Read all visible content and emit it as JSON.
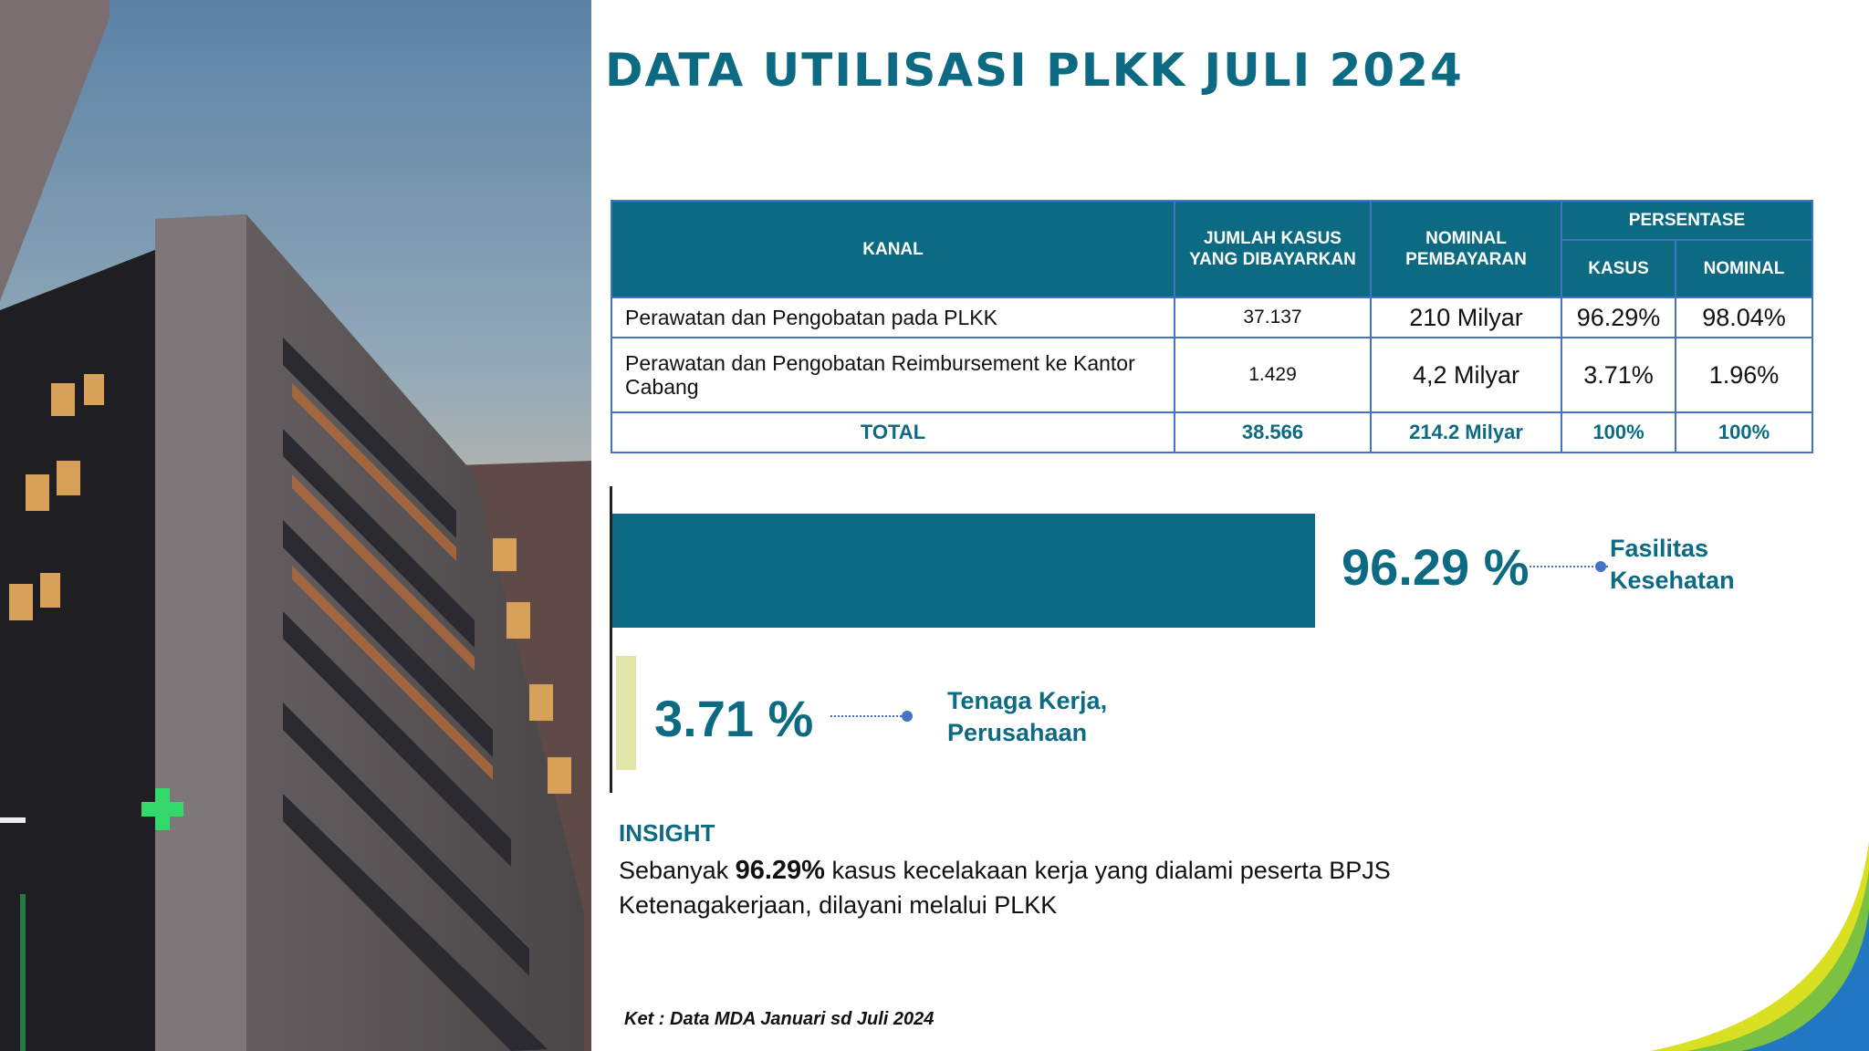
{
  "title": "DATA UTILISASI PLKK JULI 2024",
  "table": {
    "headers": {
      "kanal": "KANAL",
      "jumlah_kasus": "JUMLAH KASUS YANG DIBAYARKAN",
      "nominal": "NOMINAL PEMBAYARAN",
      "persentase": "PERSENTASE",
      "kasus": "KASUS",
      "nominal_pct": "NOMINAL"
    },
    "rows": [
      {
        "kanal": "Perawatan dan Pengobatan pada PLKK",
        "jumlah_kasus": "37.137",
        "nominal": "210 Milyar",
        "kasus_pct": "96.29%",
        "nominal_pct": "98.04%"
      },
      {
        "kanal": "Perawatan dan Pengobatan Reimbursement ke Kantor Cabang",
        "jumlah_kasus": "1.429",
        "nominal": "4,2 Milyar",
        "kasus_pct": "3.71%",
        "nominal_pct": "1.96%"
      }
    ],
    "total": {
      "label": "TOTAL",
      "jumlah_kasus": "38.566",
      "nominal": "214.2 Milyar",
      "kasus_pct": "100%",
      "nominal_pct": "100%"
    }
  },
  "chart_data": {
    "type": "bar",
    "orientation": "horizontal",
    "categories": [
      "Fasilitas Kesehatan",
      "Tenaga Kerja, Perusahaan"
    ],
    "values": [
      96.29,
      3.71
    ],
    "value_labels": [
      "96.29 %",
      "3.71 %"
    ],
    "category_label_lines": [
      [
        "Fasilitas",
        "Kesehatan"
      ],
      [
        "Tenaga Kerja,",
        "Perusahaan"
      ]
    ],
    "colors": [
      "#0c6a82",
      "#e1e6a8"
    ],
    "xlim": [
      0,
      100
    ]
  },
  "insight": {
    "heading": "INSIGHT",
    "prefix": "Sebanyak",
    "highlight": "96.29%",
    "line1_rest": "kasus kecelakaan kerja yang dialami peserta BPJS",
    "line2": "Ketenagakerjaan, dilayani melalui PLKK"
  },
  "footnote": "Ket : Data MDA Januari sd Juli 2024",
  "colors": {
    "primary": "#0c6a82",
    "title": "#0d6a83",
    "table_border": "#4472c4",
    "minor_bar": "#e1e6a8",
    "swoosh_blue": "#1f78c1",
    "swoosh_green": "#7cc242",
    "swoosh_yellow": "#d9e021"
  }
}
